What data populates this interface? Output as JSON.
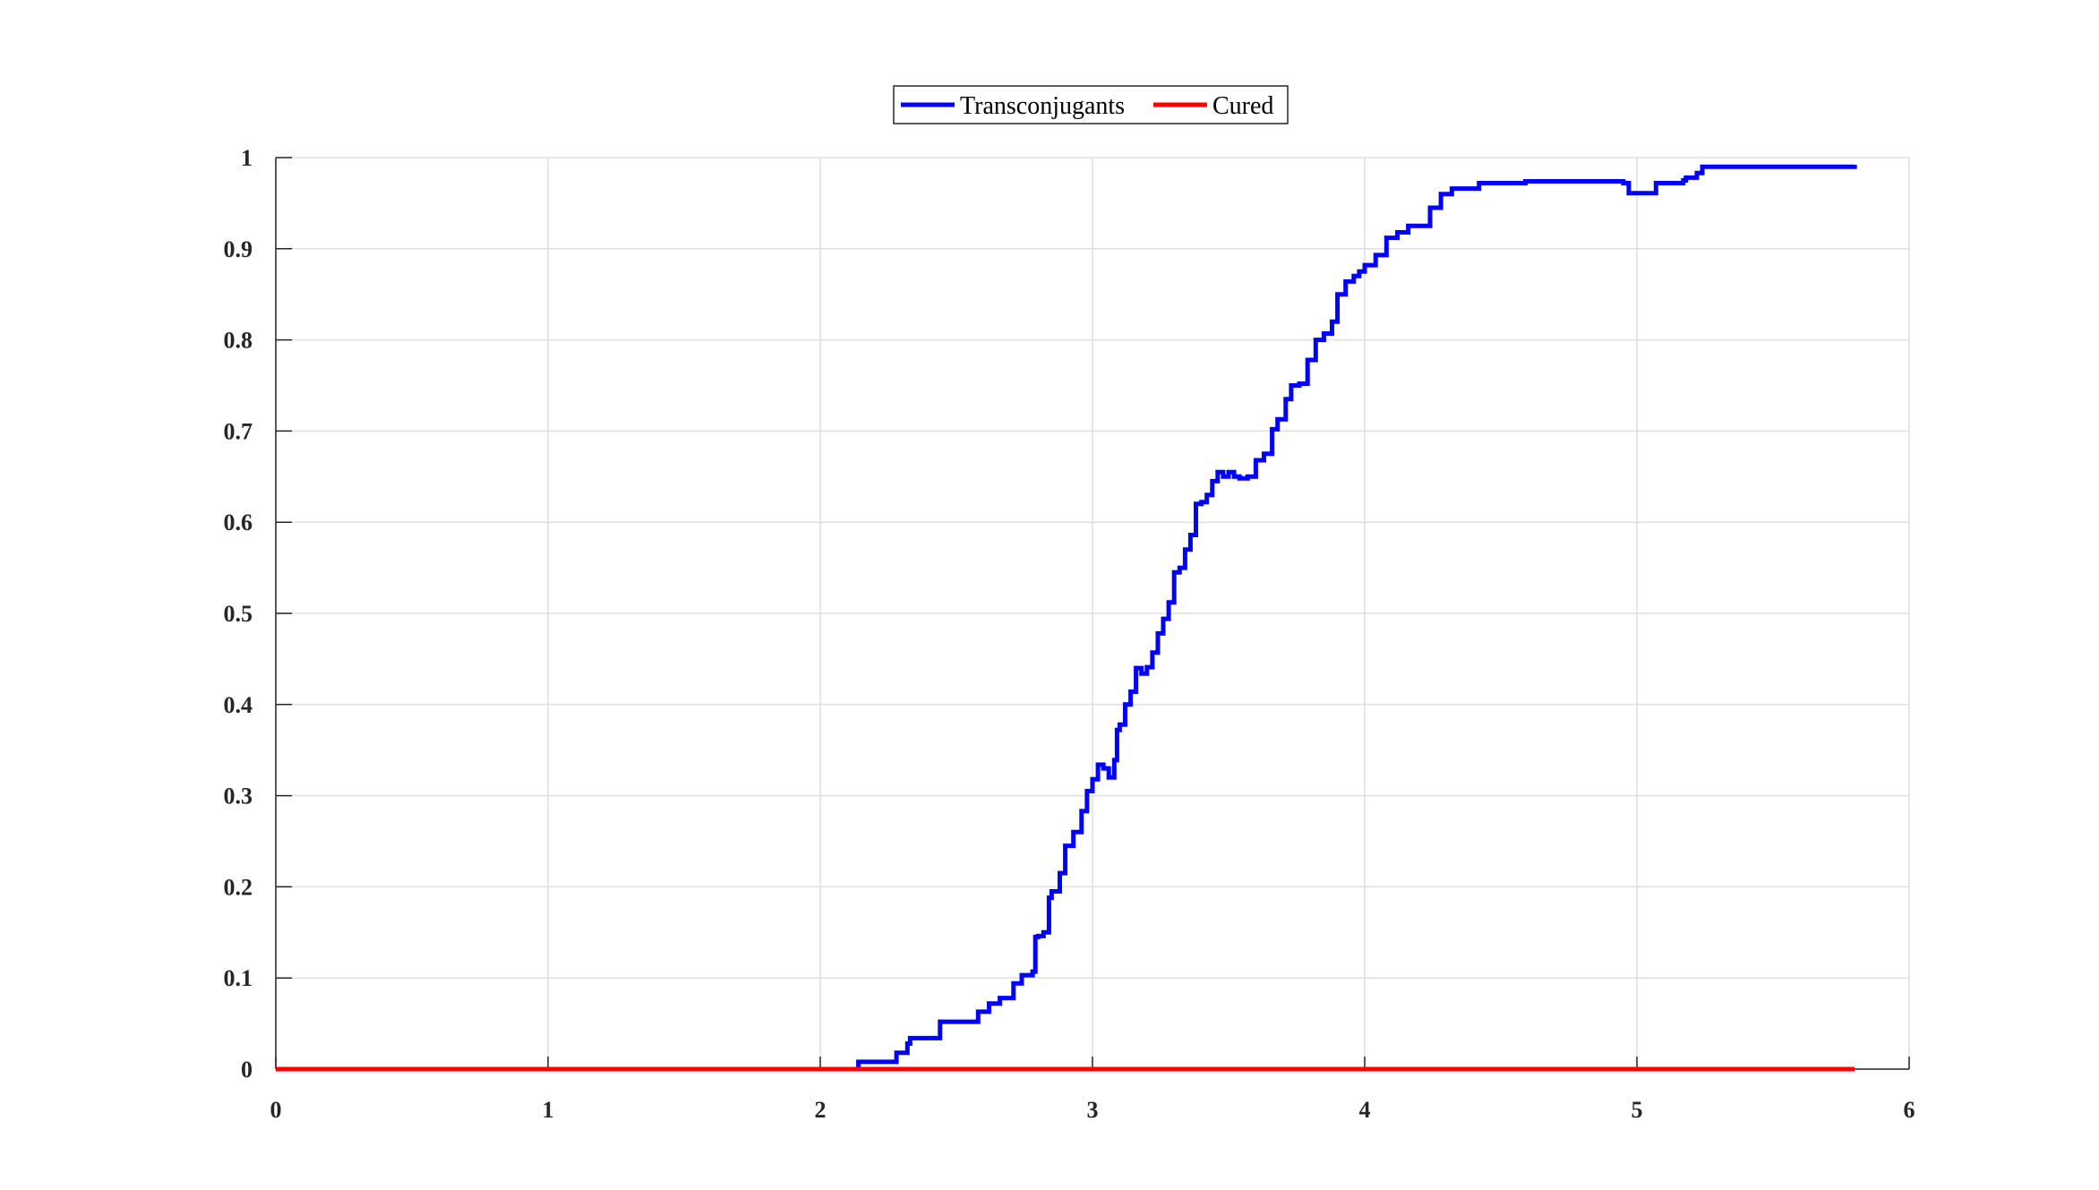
{
  "chart_data": {
    "type": "line",
    "title": "",
    "xlabel": "",
    "ylabel": "",
    "xlim": [
      0,
      6
    ],
    "ylim": [
      0,
      1
    ],
    "grid": true,
    "legend_position": "top-center",
    "x_ticks": [
      "0",
      "1",
      "2",
      "3",
      "4",
      "5",
      "6"
    ],
    "y_ticks": [
      "0",
      "0.1",
      "0.2",
      "0.3",
      "0.4",
      "0.5",
      "0.6",
      "0.7",
      "0.8",
      "0.9",
      "1"
    ],
    "series": [
      {
        "name": "Transconjugants",
        "color": "#0000ff",
        "x": [
          2.13,
          2.14,
          2.26,
          2.28,
          2.32,
          2.33,
          2.43,
          2.44,
          2.54,
          2.58,
          2.62,
          2.66,
          2.68,
          2.71,
          2.72,
          2.74,
          2.78,
          2.79,
          2.8,
          2.82,
          2.84,
          2.85,
          2.88,
          2.9,
          2.93,
          2.96,
          2.98,
          3.0,
          3.02,
          3.04,
          3.06,
          3.08,
          3.09,
          3.1,
          3.12,
          3.14,
          3.16,
          3.18,
          3.2,
          3.22,
          3.24,
          3.26,
          3.28,
          3.3,
          3.32,
          3.34,
          3.36,
          3.38,
          3.4,
          3.42,
          3.44,
          3.46,
          3.48,
          3.5,
          3.52,
          3.54,
          3.57,
          3.6,
          3.63,
          3.66,
          3.68,
          3.71,
          3.73,
          3.76,
          3.79,
          3.82,
          3.85,
          3.88,
          3.9,
          3.93,
          3.96,
          3.98,
          4.0,
          4.04,
          4.08,
          4.12,
          4.16,
          4.2,
          4.24,
          4.28,
          4.32,
          4.36,
          4.4,
          4.42,
          4.58,
          4.59,
          4.95,
          4.97,
          5.05,
          5.07,
          5.17,
          5.18,
          5.22,
          5.24,
          5.8
        ],
        "y": [
          0.0,
          0.008,
          0.008,
          0.018,
          0.028,
          0.034,
          0.034,
          0.052,
          0.052,
          0.063,
          0.072,
          0.078,
          0.078,
          0.094,
          0.094,
          0.103,
          0.107,
          0.145,
          0.146,
          0.15,
          0.188,
          0.195,
          0.215,
          0.245,
          0.26,
          0.283,
          0.305,
          0.318,
          0.334,
          0.33,
          0.32,
          0.339,
          0.372,
          0.378,
          0.4,
          0.414,
          0.44,
          0.434,
          0.441,
          0.457,
          0.478,
          0.494,
          0.512,
          0.545,
          0.55,
          0.57,
          0.586,
          0.62,
          0.622,
          0.63,
          0.645,
          0.655,
          0.65,
          0.655,
          0.65,
          0.648,
          0.65,
          0.668,
          0.675,
          0.702,
          0.713,
          0.735,
          0.75,
          0.752,
          0.778,
          0.8,
          0.807,
          0.82,
          0.85,
          0.864,
          0.87,
          0.875,
          0.882,
          0.893,
          0.912,
          0.918,
          0.925,
          0.925,
          0.945,
          0.96,
          0.966,
          0.966,
          0.966,
          0.972,
          0.972,
          0.974,
          0.972,
          0.961,
          0.961,
          0.972,
          0.975,
          0.978,
          0.983,
          0.99,
          0.992
        ]
      },
      {
        "name": "Cured",
        "color": "#ff0000",
        "x": [
          0.0,
          5.8
        ],
        "y": [
          0.0,
          0.0
        ]
      }
    ]
  }
}
